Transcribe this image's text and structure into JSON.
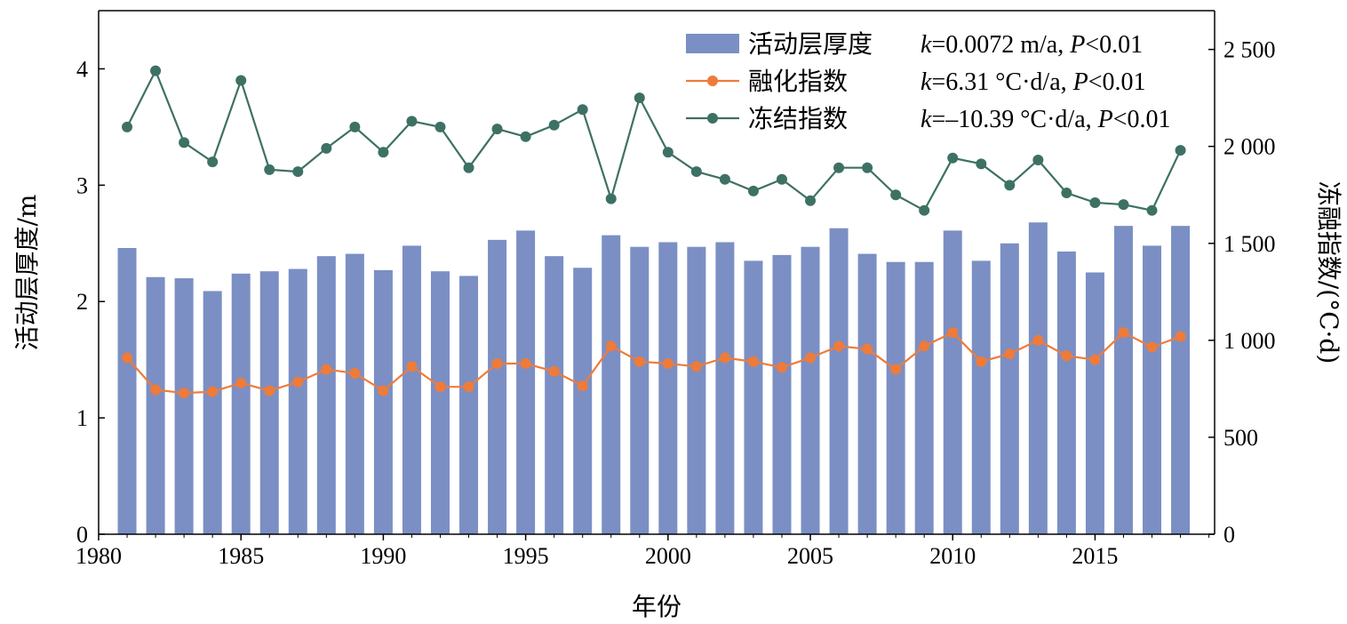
{
  "chart_data": {
    "type": "bar+line",
    "xlabel": "年份",
    "ylabel_left": "活动层厚度/m",
    "ylabel_right": "冻融指数/(°C·d)",
    "xlim": [
      1980,
      2019.2
    ],
    "ylim_left": [
      0,
      4.5
    ],
    "ylim_right": [
      0,
      2700
    ],
    "x_ticks": [
      "1980",
      "1985",
      "1990",
      "1995",
      "2000",
      "2005",
      "2010",
      "2015"
    ],
    "y_ticks_left": [
      "0",
      "1",
      "2",
      "3",
      "4"
    ],
    "y_ticks_right": [
      "0",
      "500",
      "1 000",
      "1 500",
      "2 000",
      "2 500"
    ],
    "grid": false,
    "legend_position": "top-right",
    "years": [
      1981,
      1982,
      1983,
      1984,
      1985,
      1986,
      1987,
      1988,
      1989,
      1990,
      1991,
      1992,
      1993,
      1994,
      1995,
      1996,
      1997,
      1998,
      1999,
      2000,
      2001,
      2002,
      2003,
      2004,
      2005,
      2006,
      2007,
      2008,
      2009,
      2010,
      2011,
      2012,
      2013,
      2014,
      2015,
      2016,
      2017,
      2018
    ],
    "series": [
      {
        "name": "活动层厚度",
        "stat_k_label": "k",
        "stat_k": "=0.0072 m/a, ",
        "stat_p_label": "P",
        "stat_p": "<0.01",
        "type": "bar",
        "axis": "left",
        "color": "#7b8fc4",
        "values": [
          2.46,
          2.21,
          2.2,
          2.09,
          2.24,
          2.26,
          2.28,
          2.39,
          2.41,
          2.27,
          2.48,
          2.26,
          2.22,
          2.53,
          2.61,
          2.39,
          2.29,
          2.57,
          2.47,
          2.51,
          2.47,
          2.51,
          2.35,
          2.4,
          2.47,
          2.63,
          2.41,
          2.34,
          2.34,
          2.61,
          2.35,
          2.5,
          2.68,
          2.43,
          2.25,
          2.65,
          2.48,
          2.65
        ]
      },
      {
        "name": "融化指数",
        "stat_k_label": "k",
        "stat_k": "=6.31 °C·d/a, ",
        "stat_p_label": "P",
        "stat_p": "<0.01",
        "type": "line",
        "axis": "right",
        "color": "#ee7b3a",
        "values": [
          910,
          745,
          728,
          735,
          780,
          740,
          785,
          850,
          830,
          740,
          865,
          760,
          760,
          880,
          880,
          840,
          765,
          970,
          890,
          880,
          865,
          910,
          890,
          860,
          910,
          970,
          955,
          850,
          970,
          1040,
          890,
          930,
          1000,
          920,
          900,
          1040,
          965,
          1020
        ]
      },
      {
        "name": "冻结指数",
        "stat_k_label": "k",
        "stat_k": "=–10.39 °C·d/a, ",
        "stat_p_label": "P",
        "stat_p": "<0.01",
        "type": "line",
        "axis": "right",
        "color": "#3d7164",
        "values": [
          2100,
          2390,
          2020,
          1920,
          2340,
          1880,
          1870,
          1990,
          2100,
          1970,
          2130,
          2100,
          1890,
          2090,
          2050,
          2110,
          2190,
          1730,
          2250,
          1970,
          1870,
          1830,
          1770,
          1830,
          1720,
          1890,
          1890,
          1750,
          1670,
          1940,
          1910,
          1800,
          1930,
          1760,
          1710,
          1700,
          1670,
          1980
        ]
      }
    ]
  }
}
